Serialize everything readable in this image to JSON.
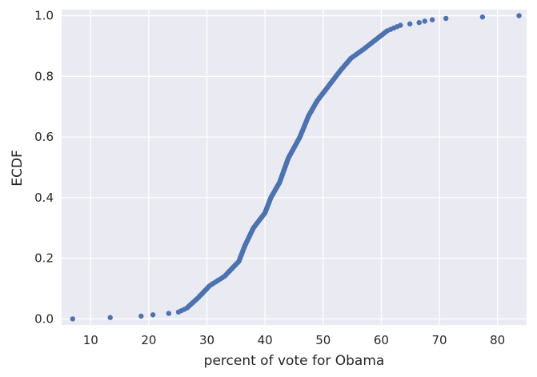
{
  "chart_data": {
    "type": "scatter",
    "title": "",
    "xlabel": "percent of vote for Obama",
    "ylabel": "ECDF",
    "xlim": [
      5,
      85
    ],
    "ylim": [
      -0.02,
      1.02
    ],
    "x_ticks": [
      10,
      20,
      30,
      40,
      50,
      60,
      70,
      80
    ],
    "y_ticks": [
      0.0,
      0.2,
      0.4,
      0.6,
      0.8,
      1.0
    ],
    "y_tick_labels": [
      "0.0",
      "0.2",
      "0.4",
      "0.6",
      "0.8",
      "1.0"
    ],
    "grid": true,
    "style": "seaborn-darkgrid",
    "colors": {
      "background": "#EAEAF2",
      "grid": "#FFFFFF",
      "marker": "#4C72B0",
      "text": "#262626"
    },
    "marker": "circle",
    "anchor_points": [
      {
        "x": 6.9,
        "y": 0.0
      },
      {
        "x": 16.9,
        "y": 0.007
      },
      {
        "x": 19.5,
        "y": 0.01
      },
      {
        "x": 21.2,
        "y": 0.015
      },
      {
        "x": 24.8,
        "y": 0.02
      },
      {
        "x": 26.5,
        "y": 0.035
      },
      {
        "x": 28.5,
        "y": 0.07
      },
      {
        "x": 30.5,
        "y": 0.11
      },
      {
        "x": 33.0,
        "y": 0.14
      },
      {
        "x": 35.5,
        "y": 0.19
      },
      {
        "x": 36.5,
        "y": 0.24
      },
      {
        "x": 38.0,
        "y": 0.3
      },
      {
        "x": 40.0,
        "y": 0.35
      },
      {
        "x": 41.0,
        "y": 0.4
      },
      {
        "x": 42.5,
        "y": 0.45
      },
      {
        "x": 44.0,
        "y": 0.53
      },
      {
        "x": 46.0,
        "y": 0.6
      },
      {
        "x": 47.5,
        "y": 0.67
      },
      {
        "x": 49.0,
        "y": 0.72
      },
      {
        "x": 51.0,
        "y": 0.77
      },
      {
        "x": 53.0,
        "y": 0.82
      },
      {
        "x": 54.8,
        "y": 0.86
      },
      {
        "x": 57.0,
        "y": 0.89
      },
      {
        "x": 59.0,
        "y": 0.92
      },
      {
        "x": 61.0,
        "y": 0.95
      },
      {
        "x": 63.5,
        "y": 0.97
      },
      {
        "x": 66.0,
        "y": 0.975
      },
      {
        "x": 67.5,
        "y": 0.982
      },
      {
        "x": 69.8,
        "y": 0.99
      },
      {
        "x": 83.7,
        "y": 1.0
      }
    ],
    "n_points": 222
  }
}
